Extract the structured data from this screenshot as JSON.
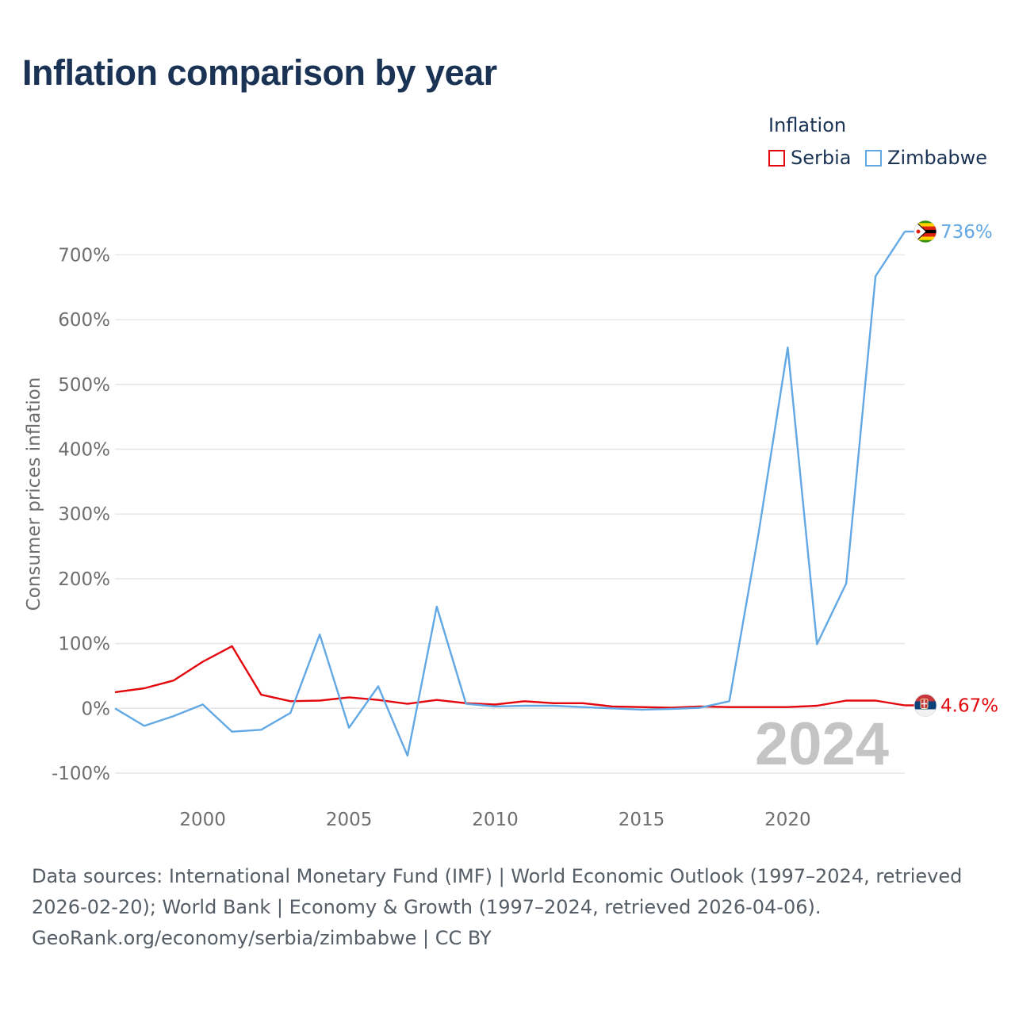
{
  "title": "Inflation comparison by year",
  "legend": {
    "title": "Inflation",
    "items": [
      {
        "label": "Serbia",
        "color": "#e3060c"
      },
      {
        "label": "Zimbabwe",
        "color": "#62a8e5"
      }
    ]
  },
  "chart_data": {
    "type": "line",
    "title": "Inflation comparison by year",
    "xlabel": "",
    "ylabel": "Consumer prices inflation",
    "xlim": [
      1997,
      2024
    ],
    "ylim": [
      -100,
      736
    ],
    "yticks": [
      -100,
      0,
      100,
      200,
      300,
      400,
      500,
      600,
      700
    ],
    "ytick_labels": [
      "-100%",
      "0%",
      "100%",
      "200%",
      "300%",
      "400%",
      "500%",
      "600%",
      "700%"
    ],
    "xticks": [
      2000,
      2005,
      2010,
      2015,
      2020
    ],
    "xtick_labels": [
      "2000",
      "2005",
      "2010",
      "2015",
      "2020"
    ],
    "grid": true,
    "year_watermark": "2024",
    "x": [
      1997,
      1998,
      1999,
      2000,
      2001,
      2002,
      2003,
      2004,
      2005,
      2006,
      2007,
      2008,
      2009,
      2010,
      2011,
      2012,
      2013,
      2014,
      2015,
      2016,
      2017,
      2018,
      2019,
      2020,
      2021,
      2022,
      2023,
      2024
    ],
    "series": [
      {
        "name": "Serbia",
        "color": "#e3060c",
        "end_label": "4.67%",
        "flag_icon": "serbia-flag-icon",
        "values": [
          25,
          31,
          43,
          72,
          96,
          21,
          11,
          12,
          17,
          13,
          7,
          13,
          8,
          6,
          11,
          8,
          8,
          3,
          2,
          1,
          3,
          2,
          2,
          2,
          4,
          12,
          12,
          4.67
        ]
      },
      {
        "name": "Zimbabwe",
        "color": "#62a8e5",
        "end_label": "736%",
        "flag_icon": "zimbabwe-flag-icon",
        "values": [
          0,
          -27,
          -12,
          6,
          -36,
          -33,
          -7,
          114,
          -30,
          34,
          -73,
          157,
          7,
          3,
          4,
          4,
          2,
          0,
          -2,
          -1,
          1,
          11,
          270,
          557,
          99,
          193,
          667,
          736
        ]
      }
    ]
  },
  "source": {
    "line1": "Data sources: International Monetary Fund (IMF) | World Economic Outlook (1997–2024, retrieved 2026-02-20); World Bank | Economy & Growth (1997–2024, retrieved 2026-04-06).",
    "line2": "GeoRank.org/economy/serbia/zimbabwe | CC BY"
  }
}
